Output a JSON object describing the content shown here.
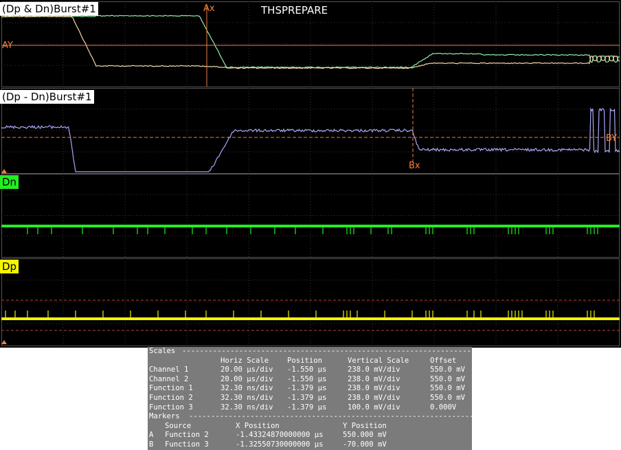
{
  "scope": {
    "title": "THSPREPARE",
    "panels": [
      {
        "label": "(Dp & Dn)Burst#1"
      },
      {
        "label": "(Dp - Dn)Burst#1"
      },
      {
        "label": "Dn"
      },
      {
        "label": "Dp"
      }
    ],
    "cursors": {
      "ax": "Ax",
      "ay": "AY",
      "bx": "Bx",
      "by": "BY"
    },
    "colors": {
      "grid": "#3a3a3a",
      "cursor": "#f08040",
      "trace_dp_top": "#90f0b0",
      "trace_dn_top": "#f8d8a8",
      "trace_diff": "#a8a8f8",
      "trace_dn": "#22ee22",
      "trace_dp": "#f4f400"
    }
  },
  "table": {
    "scales_title": "Scales",
    "headers": [
      "Horiz Scale",
      "Position",
      "Vertical Scale",
      "Offset"
    ],
    "rows": [
      {
        "name": "Channel 1",
        "horiz": "20.00 µs/div",
        "pos": "-1.550 µs",
        "vert": "238.0 mV/div",
        "offset": "550.0 mV"
      },
      {
        "name": "Channel 2",
        "horiz": "20.00 µs/div",
        "pos": "-1.550 µs",
        "vert": "238.0 mV/div",
        "offset": "550.0 mV"
      },
      {
        "name": "Function 1",
        "horiz": "32.30 ns/div",
        "pos": "-1.379 µs",
        "vert": "238.0 mV/div",
        "offset": "550.0 mV"
      },
      {
        "name": "Function 2",
        "horiz": "32.30 ns/div",
        "pos": "-1.379 µs",
        "vert": "238.0 mV/div",
        "offset": "550.0 mV"
      },
      {
        "name": "Function 3",
        "horiz": "32.30 ns/div",
        "pos": "-1.379 µs",
        "vert": "100.0 mV/div",
        "offset": "0.000V"
      }
    ],
    "markers_title": "Markers",
    "marker_headers": [
      "Source",
      "X Position",
      "Y Position"
    ],
    "markers": [
      {
        "id": "A",
        "source": "Function 2",
        "x": "-1.43324870000000 µs",
        "y": "550.000 mV"
      },
      {
        "id": "B",
        "source": "Function 3",
        "x": "-1.32550730000000 µs",
        "y": "-70.000 mV"
      }
    ]
  }
}
